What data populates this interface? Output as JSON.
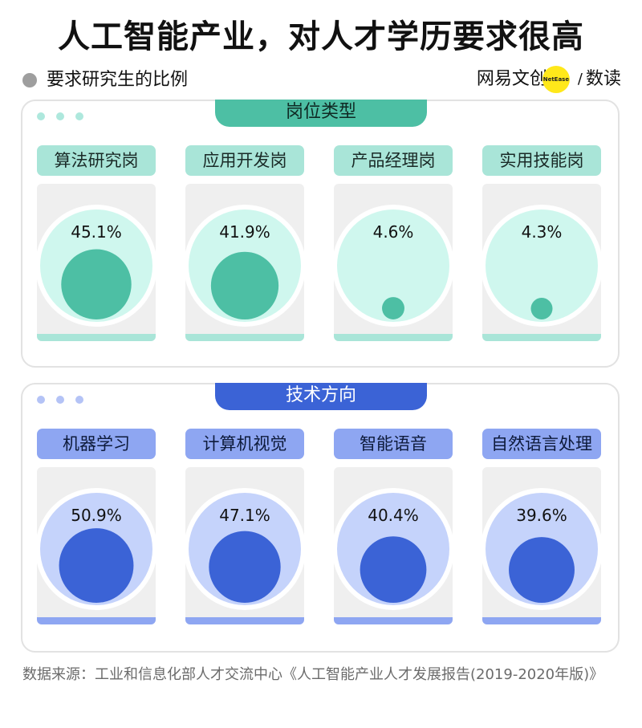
{
  "header": {
    "title": "人工智能产业，对人才学历要求很高",
    "subtitle": "要求研究生的比例",
    "brand_text": "网易文创",
    "brand_badge": "NetEase",
    "brand_suffix": "数读"
  },
  "colors": {
    "job_light": "#cff7ee",
    "job_dark": "#4dbfa4",
    "tech_light": "#c5d3fb",
    "tech_dark": "#3b63d6"
  },
  "chart_data": [
    {
      "type": "bubble",
      "title": "岗位类型",
      "categories": [
        "算法研究岗",
        "应用开发岗",
        "产品经理岗",
        "实用技能岗"
      ],
      "values": [
        45.1,
        41.9,
        4.6,
        4.3
      ],
      "labels": [
        "45.1%",
        "41.9%",
        "4.6%",
        "4.3%"
      ],
      "unit": "%"
    },
    {
      "type": "bubble",
      "title": "技术方向",
      "categories": [
        "机器学习",
        "计算机视觉",
        "智能语音",
        "自然语言处理"
      ],
      "values": [
        50.9,
        47.1,
        40.4,
        39.6
      ],
      "labels": [
        "50.9%",
        "47.1%",
        "40.4%",
        "39.6%"
      ],
      "unit": "%"
    }
  ],
  "footer": {
    "source": "数据来源：工业和信息化部人才交流中心《人工智能产业人才发展报告(2019-2020年版)》"
  }
}
